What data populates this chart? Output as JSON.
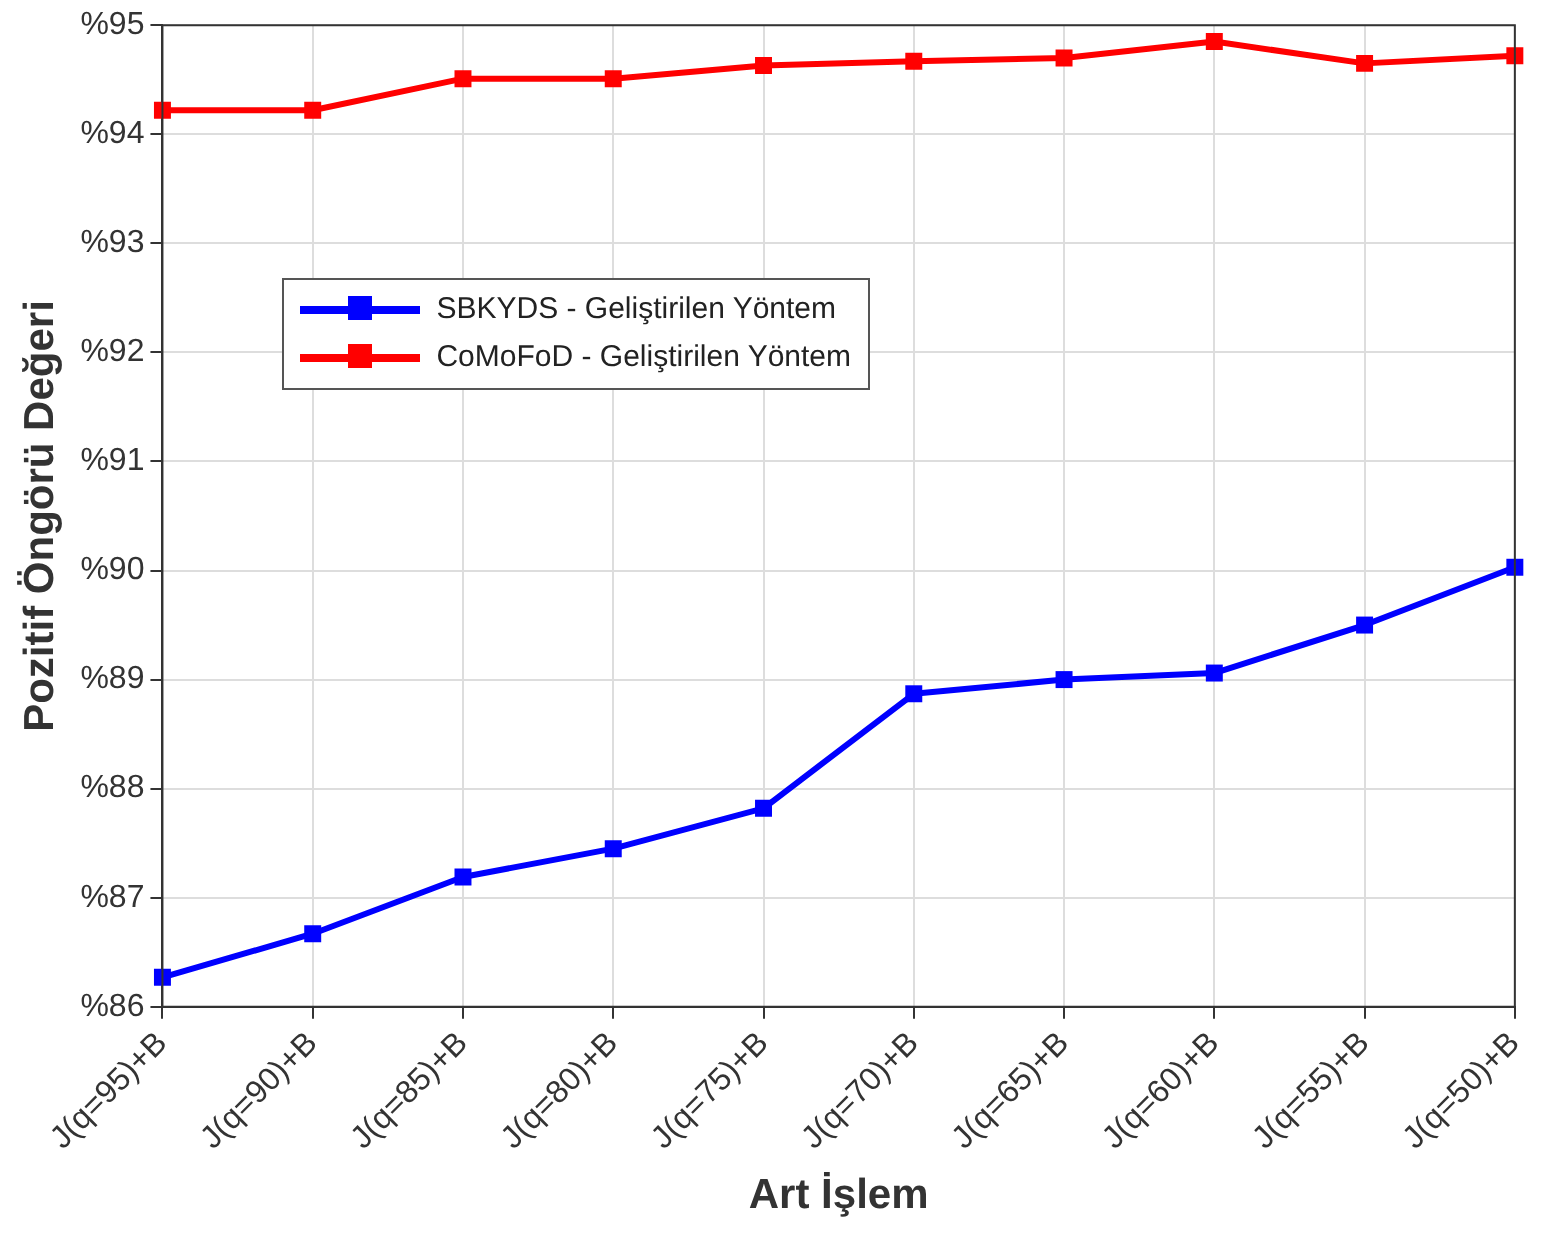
{
  "chart_data": {
    "type": "line",
    "xlabel": "Art İşlem",
    "ylabel": "Pozitif Öngörü Değeri",
    "categories": [
      "J(q=95)+B",
      "J(q=90)+B",
      "J(q=85)+B",
      "J(q=80)+B",
      "J(q=75)+B",
      "J(q=70)+B",
      "J(q=65)+B",
      "J(q=60)+B",
      "J(q=55)+B",
      "J(q=50)+B"
    ],
    "series": [
      {
        "name": "SBKYDS - Geliştirilen Yöntem",
        "color": "#0000ff",
        "values": [
          86.27,
          86.67,
          87.19,
          87.45,
          87.82,
          88.87,
          89.0,
          89.06,
          89.5,
          90.03
        ]
      },
      {
        "name": "CoMoFoD - Geliştirilen Yöntem",
        "color": "#ff0000",
        "values": [
          94.22,
          94.22,
          94.51,
          94.51,
          94.63,
          94.67,
          94.7,
          94.85,
          94.65,
          94.72
        ]
      }
    ],
    "ylim": [
      86,
      95
    ],
    "yticks": [
      {
        "value": 86,
        "label": "%86"
      },
      {
        "value": 87,
        "label": "%87"
      },
      {
        "value": 88,
        "label": "%88"
      },
      {
        "value": 89,
        "label": "%89"
      },
      {
        "value": 90,
        "label": "%90"
      },
      {
        "value": 91,
        "label": "%91"
      },
      {
        "value": 92,
        "label": "%92"
      },
      {
        "value": 93,
        "label": "%93"
      },
      {
        "value": 94,
        "label": "%94"
      },
      {
        "value": 95,
        "label": "%95"
      }
    ],
    "grid": true,
    "legend": "top",
    "marker": "square",
    "line_style": "solid"
  }
}
